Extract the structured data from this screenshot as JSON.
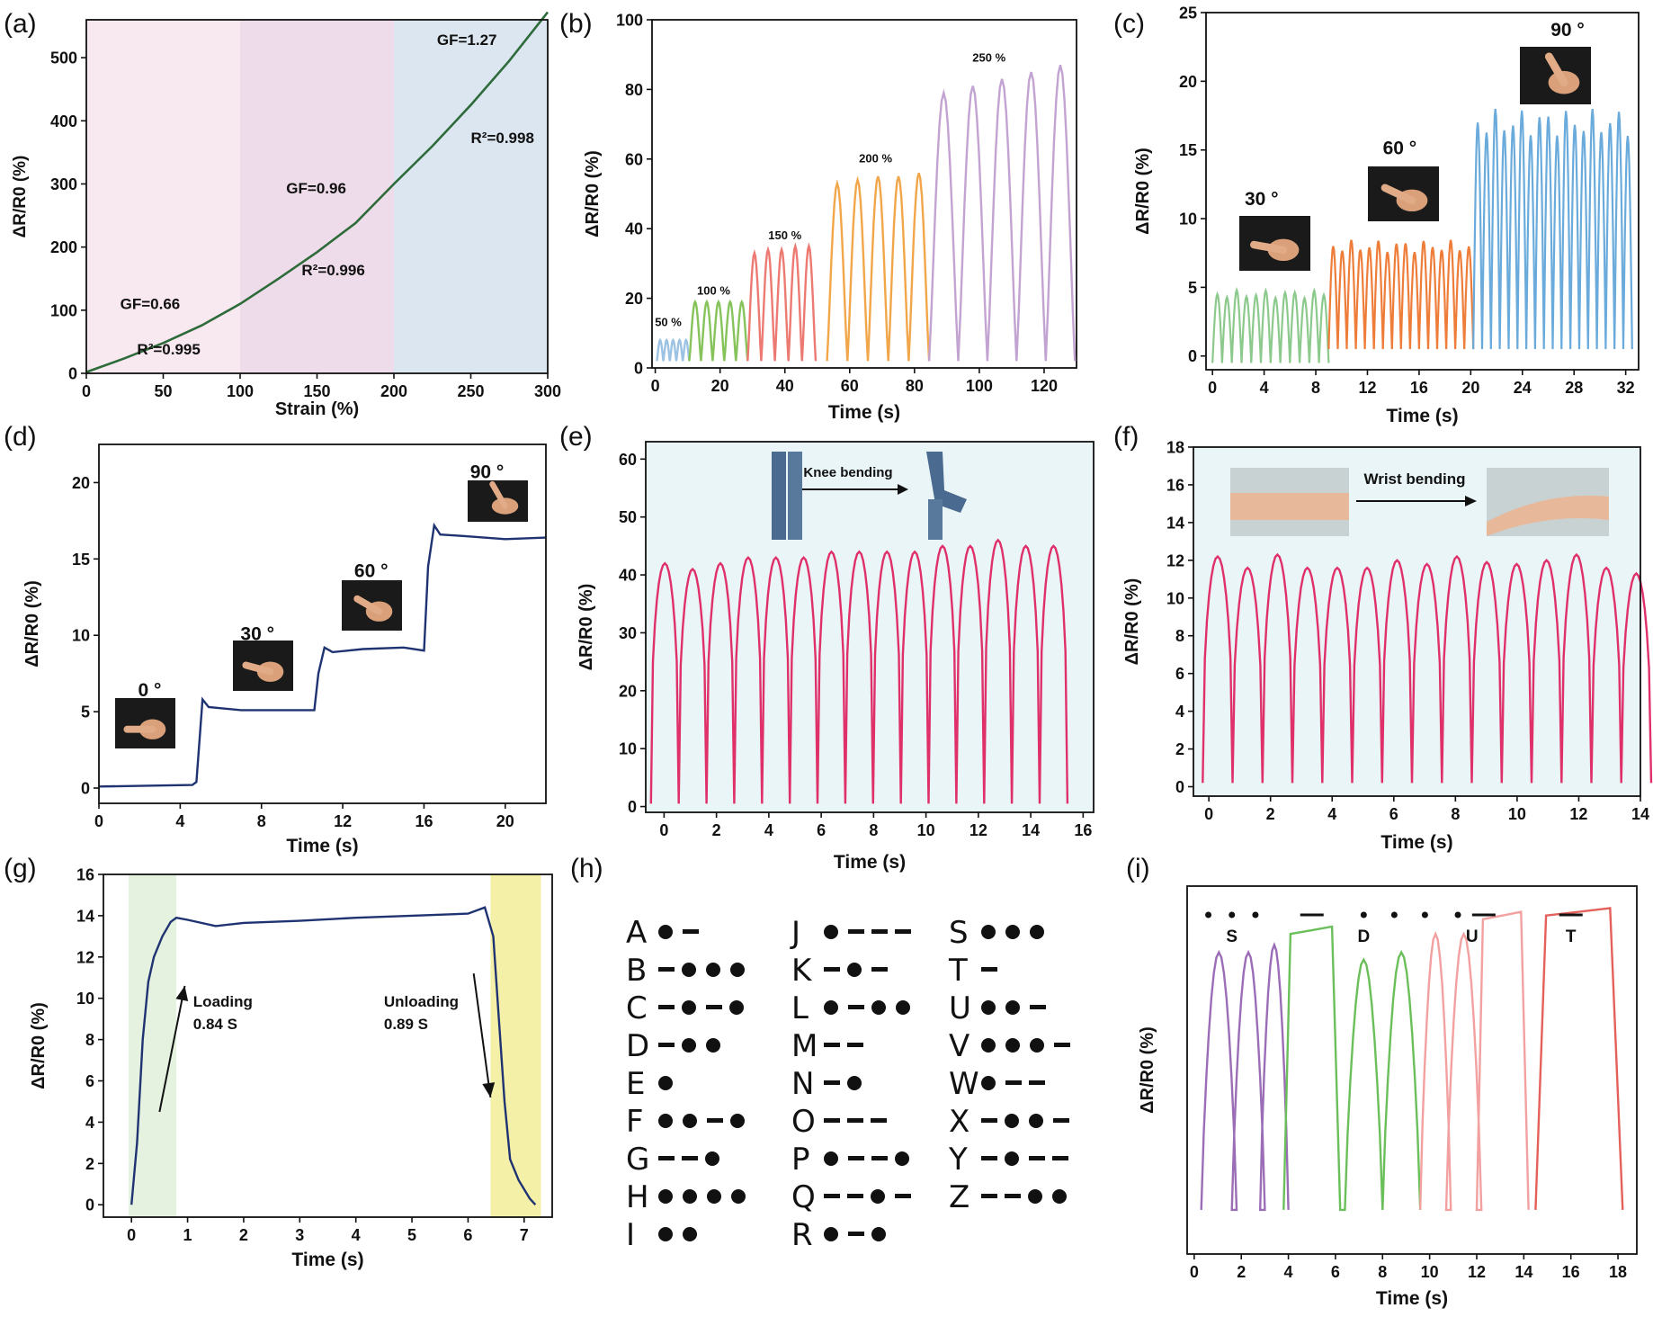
{
  "panel_labels": [
    "(a)",
    "(b)",
    "(c)",
    "(d)",
    "(e)",
    "(f)",
    "(g)",
    "(h)",
    "(i)"
  ],
  "colors": {
    "a_line": "#2e6b3a",
    "a_region1": "#f8e8ef",
    "a_region2": "#efdcea",
    "a_region3": "#dce6f1",
    "b_series": [
      "#9cc3e3",
      "#86c35a",
      "#ec7a72",
      "#f2a64a",
      "#c2a3d1"
    ],
    "c_series": [
      "#8cc98c",
      "#ee7d3a",
      "#6aabdc"
    ],
    "d_line": "#1f3372",
    "e_line": "#e0306a",
    "f_line": "#e0306a",
    "g_line": "#1f3372",
    "g_loading_band": "#e4f2df",
    "g_unloading_band": "#f5f0a8",
    "i_series": [
      "#9b6db6",
      "#6abf5a",
      "#f2a0a0",
      "#e4605a"
    ],
    "ef_background": "#e9f5f7"
  },
  "photos": {
    "c": [
      "finger-30-photo",
      "finger-60-photo",
      "finger-90-photo"
    ],
    "d": [
      "finger-0-photo",
      "finger-30-photo",
      "finger-60-photo",
      "finger-90-photo"
    ],
    "e": [
      "standing-legs-photo",
      "bent-knee-photo"
    ],
    "f": [
      "straight-wrist-photo",
      "bent-wrist-photo"
    ]
  },
  "chart_data": [
    {
      "panel": "(a)",
      "type": "line",
      "xlabel": "Strain (%)",
      "ylabel": "ΔR/R0 (%)",
      "xlim": [
        0,
        300
      ],
      "ylim": [
        0,
        560
      ],
      "xticks": [
        "0",
        "50",
        "100",
        "150",
        "200",
        "250",
        "300"
      ],
      "yticks": [
        "0",
        "100",
        "200",
        "300",
        "400",
        "500"
      ],
      "regions": [
        [
          0,
          100
        ],
        [
          100,
          200
        ],
        [
          200,
          300
        ]
      ],
      "series": [
        {
          "x": [
            0,
            25,
            50,
            75,
            100,
            125,
            150,
            175,
            200,
            225,
            250,
            275,
            300
          ],
          "y": [
            2,
            24,
            48,
            76,
            110,
            150,
            192,
            238,
            300,
            360,
            425,
            495,
            572
          ]
        }
      ],
      "annotations": [
        {
          "text": "GF=0.66",
          "x": 22,
          "y": 102
        },
        {
          "text": "R²=0.995",
          "x": 33,
          "y": 30
        },
        {
          "text": "GF=0.96",
          "x": 130,
          "y": 285
        },
        {
          "text": "R²=0.996",
          "x": 140,
          "y": 155
        },
        {
          "text": "GF=1.27",
          "x": 228,
          "y": 520
        },
        {
          "text": "R²=0.998",
          "x": 250,
          "y": 365
        }
      ]
    },
    {
      "panel": "(b)",
      "type": "line",
      "xlabel": "Time (s)",
      "ylabel": "ΔR/R0 (%)",
      "xlim": [
        -1,
        130
      ],
      "ylim": [
        0,
        100
      ],
      "xticks": [
        "0",
        "20",
        "40",
        "60",
        "80",
        "100",
        "120"
      ],
      "yticks": [
        "0",
        "20",
        "40",
        "60",
        "80",
        "100"
      ],
      "series": [
        {
          "name": "50 %",
          "start": 0.5,
          "period": 2.0,
          "peaks": [
            8,
            8,
            8,
            8,
            8
          ]
        },
        {
          "name": "100 %",
          "start": 10.5,
          "period": 3.6,
          "peaks": [
            19,
            19,
            19,
            19,
            19
          ]
        },
        {
          "name": "150 %",
          "start": 28.5,
          "period": 4.2,
          "peaks": [
            33,
            34,
            34,
            35,
            35
          ]
        },
        {
          "name": "200 %",
          "start": 53.0,
          "period": 6.3,
          "peaks": [
            53,
            54,
            55,
            55,
            56
          ]
        },
        {
          "name": "250 %",
          "start": 84.5,
          "period": 9.0,
          "peaks": [
            79,
            81,
            83,
            85,
            87
          ]
        }
      ],
      "annotations": [
        {
          "text": "50 %",
          "x": 4,
          "y": 12
        },
        {
          "text": "100 %",
          "x": 18,
          "y": 21
        },
        {
          "text": "150 %",
          "x": 40,
          "y": 37
        },
        {
          "text": "200 %",
          "x": 68,
          "y": 59
        },
        {
          "text": "250 %",
          "x": 103,
          "y": 88
        }
      ]
    },
    {
      "panel": "(c)",
      "type": "line",
      "xlabel": "Time (s)",
      "ylabel": "ΔR/R0 (%)",
      "xlim": [
        -0.5,
        33
      ],
      "ylim": [
        -1,
        25
      ],
      "xticks": [
        "0",
        "4",
        "8",
        "12",
        "16",
        "20",
        "24",
        "28",
        "32"
      ],
      "yticks": [
        "0",
        "5",
        "10",
        "15",
        "20",
        "25"
      ],
      "series": [
        {
          "name": "30 °",
          "start": 0,
          "end": 9,
          "cycles": 12,
          "min": -0.5,
          "max": 4.5
        },
        {
          "name": "60 °",
          "start": 9,
          "end": 20.2,
          "cycles": 16,
          "min": 0.5,
          "max": 8.0
        },
        {
          "name": "90 °",
          "start": 20.2,
          "end": 32.5,
          "cycles": 18,
          "min": 0.5,
          "max": 17.0
        }
      ],
      "annotations": [
        {
          "text": "30 °",
          "x": 3.8,
          "y": 11
        },
        {
          "text": "60 °",
          "x": 14.5,
          "y": 14.7
        },
        {
          "text": "90 °",
          "x": 27.5,
          "y": 23.3
        }
      ]
    },
    {
      "panel": "(d)",
      "type": "line",
      "xlabel": "Time (s)",
      "ylabel": "ΔR/R0 (%)",
      "xlim": [
        0,
        22
      ],
      "ylim": [
        -1,
        22.5
      ],
      "xticks": [
        "0",
        "4",
        "8",
        "12",
        "16",
        "20"
      ],
      "yticks": [
        "0",
        "5",
        "10",
        "15",
        "20"
      ],
      "series": [
        {
          "x": [
            0,
            4.6,
            4.8,
            5.1,
            5.4,
            7,
            9,
            10.6,
            10.8,
            11.1,
            11.5,
            13,
            15,
            16.0,
            16.2,
            16.5,
            16.8,
            18,
            20,
            22
          ],
          "y": [
            0.1,
            0.2,
            0.4,
            5.8,
            5.3,
            5.1,
            5.1,
            5.1,
            7.5,
            9.2,
            8.9,
            9.1,
            9.2,
            9.0,
            14.5,
            17.2,
            16.6,
            16.5,
            16.3,
            16.4
          ]
        }
      ],
      "annotations": [
        {
          "text": "0 °",
          "x": 2.5,
          "y": 6
        },
        {
          "text": "30 °",
          "x": 7.8,
          "y": 9.7
        },
        {
          "text": "60 °",
          "x": 13.4,
          "y": 13.8
        },
        {
          "text": "90 °",
          "x": 19.1,
          "y": 20.3
        }
      ]
    },
    {
      "panel": "(e)",
      "type": "line",
      "xlabel": "Time (s)",
      "ylabel": "ΔR/R0 (%)",
      "xlim": [
        -0.7,
        16.4
      ],
      "ylim": [
        -1,
        63
      ],
      "xticks": [
        "0",
        "2",
        "4",
        "6",
        "8",
        "10",
        "12",
        "14",
        "16"
      ],
      "yticks": [
        "0",
        "10",
        "20",
        "30",
        "40",
        "50",
        "60"
      ],
      "series": [
        {
          "start": -0.5,
          "period": 1.06,
          "peaks": [
            42,
            41,
            42,
            43,
            43,
            43,
            44,
            44,
            44,
            44,
            45,
            45,
            46,
            45,
            45
          ]
        }
      ],
      "annotations": [
        {
          "text": "Knee bending",
          "x": 6,
          "y": 57
        }
      ]
    },
    {
      "panel": "(f)",
      "type": "line",
      "xlabel": "Time (s)",
      "ylabel": "ΔR/R0 (%)",
      "xlim": [
        -0.5,
        14
      ],
      "ylim": [
        -0.5,
        18
      ],
      "xticks": [
        "0",
        "2",
        "4",
        "6",
        "8",
        "10",
        "12",
        "14"
      ],
      "yticks": [
        "0",
        "2",
        "4",
        "6",
        "8",
        "10",
        "12",
        "14",
        "16",
        "18"
      ],
      "series": [
        {
          "start": -0.2,
          "period": 0.97,
          "peaks": [
            12.2,
            11.6,
            12.3,
            11.6,
            11.6,
            11.6,
            12.0,
            11.8,
            12.2,
            11.9,
            11.8,
            12.0,
            12.3,
            11.6,
            11.3
          ]
        }
      ],
      "annotations": [
        {
          "text": "Wrist bending",
          "x": 6.2,
          "y": 16.2
        }
      ]
    },
    {
      "panel": "(g)",
      "type": "line",
      "xlabel": "Time (s)",
      "ylabel": "ΔR/R0 (%)",
      "xlim": [
        -0.5,
        7.5
      ],
      "ylim": [
        -0.6,
        16
      ],
      "xticks": [
        "0",
        "1",
        "2",
        "3",
        "4",
        "5",
        "6",
        "7"
      ],
      "yticks": [
        "0",
        "2",
        "4",
        "6",
        "8",
        "10",
        "12",
        "14",
        "16"
      ],
      "bands": [
        [
          -0.05,
          0.8
        ],
        [
          6.4,
          7.3
        ]
      ],
      "series": [
        {
          "x": [
            0,
            0.1,
            0.2,
            0.3,
            0.4,
            0.55,
            0.7,
            0.8,
            1.0,
            1.5,
            2,
            3,
            4,
            5,
            6,
            6.3,
            6.45,
            6.55,
            6.65,
            6.75,
            6.9,
            7.1,
            7.2
          ],
          "y": [
            0,
            3,
            8,
            10.8,
            12,
            13,
            13.7,
            13.9,
            13.8,
            13.5,
            13.65,
            13.75,
            13.9,
            14.0,
            14.1,
            14.4,
            13,
            9,
            5,
            2.2,
            1.2,
            0.3,
            0
          ]
        }
      ],
      "annotations": [
        {
          "text": "Loading",
          "x": 1.1,
          "y": 9.6
        },
        {
          "text": "0.84 S",
          "x": 1.1,
          "y": 8.5
        },
        {
          "text": "Unloading",
          "x": 4.5,
          "y": 9.6
        },
        {
          "text": "0.89 S",
          "x": 4.5,
          "y": 8.5
        }
      ],
      "arrows": [
        {
          "from": [
            0.5,
            4.5
          ],
          "to": [
            0.95,
            10.6
          ]
        },
        {
          "from": [
            6.1,
            11.2
          ],
          "to": [
            6.4,
            5.2
          ]
        }
      ]
    },
    {
      "panel": "(h)",
      "type": "table",
      "columns": [
        [
          [
            "A",
            ".-"
          ],
          [
            "B",
            "-..."
          ],
          [
            "C",
            "-.-."
          ],
          [
            "D",
            "-.."
          ],
          [
            "E",
            "."
          ],
          [
            "F",
            "..-."
          ],
          [
            "G",
            "--."
          ],
          [
            "H",
            "...."
          ],
          [
            "I",
            ".."
          ]
        ],
        [
          [
            "J",
            ".---"
          ],
          [
            "K",
            "-.-"
          ],
          [
            "L",
            ".-.."
          ],
          [
            "M",
            "--"
          ],
          [
            "N",
            "-."
          ],
          [
            "O",
            "---"
          ],
          [
            "P",
            ".--."
          ],
          [
            "Q",
            "--.-"
          ],
          [
            "R",
            ".-."
          ]
        ],
        [
          [
            "S",
            "..."
          ],
          [
            "T",
            "-"
          ],
          [
            "U",
            "..-"
          ],
          [
            "V",
            "...-"
          ],
          [
            "W",
            ".--"
          ],
          [
            "X",
            "-..-"
          ],
          [
            "Y",
            "-.--"
          ],
          [
            "Z",
            "--.."
          ]
        ]
      ]
    },
    {
      "panel": "(i)",
      "type": "line",
      "xlabel": "Time (s)",
      "ylabel": "ΔR/R0 (%)",
      "xlim": [
        -0.3,
        18.8
      ],
      "ylim": [
        0,
        1
      ],
      "xticks": [
        "0",
        "2",
        "4",
        "6",
        "8",
        "10",
        "12",
        "14",
        "16",
        "18"
      ],
      "yticks": [],
      "series": [
        {
          "name": "S",
          "segments": [
            [
              0.3,
              1.8,
              "dot",
              0.82
            ],
            [
              1.6,
              3.0,
              "dot",
              0.82
            ],
            [
              2.8,
              4.0,
              "dot",
              0.84
            ]
          ]
        },
        {
          "name": "D",
          "segments": [
            [
              3.8,
              6.2,
              "dash",
              0.88
            ],
            [
              6.4,
              8.0,
              "dot",
              0.8
            ],
            [
              8.0,
              9.6,
              "dot",
              0.82
            ]
          ]
        },
        {
          "name": "U",
          "segments": [
            [
              9.6,
              10.9,
              "dot",
              0.87
            ],
            [
              10.7,
              12.2,
              "dot",
              0.87
            ],
            [
              12.0,
              14.2,
              "dash",
              0.92
            ]
          ]
        },
        {
          "name": "T",
          "segments": [
            [
              14.5,
              18.2,
              "dash",
              0.93
            ]
          ]
        }
      ],
      "morse_marks": [
        {
          "x": 0.6,
          "sym": "dot"
        },
        {
          "x": 1.6,
          "sym": "dot"
        },
        {
          "x": 2.6,
          "sym": "dot"
        },
        {
          "x": 5.0,
          "sym": "dash"
        },
        {
          "x": 7.2,
          "sym": "dot"
        },
        {
          "x": 8.5,
          "sym": "dot"
        },
        {
          "x": 9.8,
          "sym": "dot"
        },
        {
          "x": 11.2,
          "sym": "dot"
        },
        {
          "x": 12.3,
          "sym": "dash"
        },
        {
          "x": 16.0,
          "sym": "dash"
        }
      ],
      "annotations": [
        {
          "text": "S",
          "x": 1.6
        },
        {
          "text": "D",
          "x": 7.2
        },
        {
          "text": "U",
          "x": 11.8
        },
        {
          "text": "T",
          "x": 16.0
        }
      ]
    }
  ]
}
